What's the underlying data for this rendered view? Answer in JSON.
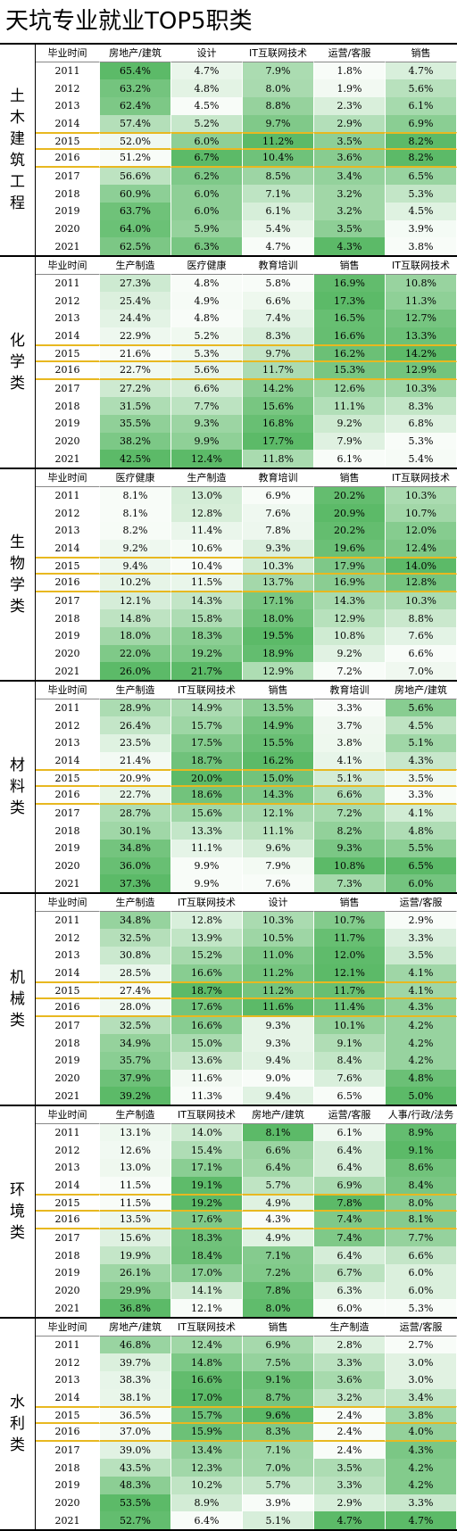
{
  "title": "天坑专业就业TOP5职类",
  "sections": [
    {
      "name": "土木建筑工程",
      "header": [
        "毕业时间",
        "房地产/建筑",
        "设计",
        "IT互联网技术",
        "运营/客服",
        "销售"
      ],
      "rows": [
        [
          "2011",
          "65.4%",
          "4.7%",
          "7.9%",
          "1.8%",
          "4.7%"
        ],
        [
          "2012",
          "63.2%",
          "4.8%",
          "8.0%",
          "1.9%",
          "5.6%"
        ],
        [
          "2013",
          "62.4%",
          "4.5%",
          "8.8%",
          "2.3%",
          "6.1%"
        ],
        [
          "2014",
          "57.4%",
          "5.2%",
          "9.7%",
          "2.9%",
          "6.9%"
        ],
        [
          "2015",
          "52.0%",
          "6.0%",
          "11.2%",
          "3.5%",
          "8.2%"
        ],
        [
          "2016",
          "51.2%",
          "6.7%",
          "10.4%",
          "3.6%",
          "8.2%"
        ],
        [
          "2017",
          "56.6%",
          "6.2%",
          "8.5%",
          "3.4%",
          "6.5%"
        ],
        [
          "2018",
          "60.9%",
          "6.0%",
          "7.1%",
          "3.2%",
          "5.3%"
        ],
        [
          "2019",
          "63.7%",
          "6.0%",
          "6.1%",
          "3.2%",
          "4.5%"
        ],
        [
          "2020",
          "64.0%",
          "5.9%",
          "5.4%",
          "3.5%",
          "3.9%"
        ],
        [
          "2021",
          "62.5%",
          "6.3%",
          "4.7%",
          "4.3%",
          "3.8%"
        ]
      ]
    },
    {
      "name": "化学类",
      "header": [
        "毕业时间",
        "生产制造",
        "医疗健康",
        "教育培训",
        "销售",
        "IT互联网技术"
      ],
      "rows": [
        [
          "2011",
          "27.3%",
          "4.8%",
          "5.8%",
          "16.9%",
          "10.8%"
        ],
        [
          "2012",
          "25.4%",
          "4.9%",
          "6.6%",
          "17.3%",
          "11.3%"
        ],
        [
          "2013",
          "24.4%",
          "4.8%",
          "7.4%",
          "16.5%",
          "12.7%"
        ],
        [
          "2014",
          "22.9%",
          "5.2%",
          "8.3%",
          "16.6%",
          "13.3%"
        ],
        [
          "2015",
          "21.6%",
          "5.3%",
          "9.7%",
          "16.2%",
          "14.2%"
        ],
        [
          "2016",
          "22.7%",
          "5.6%",
          "11.7%",
          "15.3%",
          "12.9%"
        ],
        [
          "2017",
          "27.2%",
          "6.6%",
          "14.2%",
          "12.6%",
          "10.3%"
        ],
        [
          "2018",
          "31.5%",
          "7.7%",
          "15.6%",
          "11.1%",
          "8.3%"
        ],
        [
          "2019",
          "35.5%",
          "9.3%",
          "16.8%",
          "9.2%",
          "6.8%"
        ],
        [
          "2020",
          "38.2%",
          "9.9%",
          "17.7%",
          "7.9%",
          "5.3%"
        ],
        [
          "2021",
          "42.5%",
          "12.4%",
          "11.8%",
          "6.1%",
          "5.4%"
        ]
      ]
    },
    {
      "name": "生物学类",
      "header": [
        "毕业时间",
        "医疗健康",
        "生产制造",
        "教育培训",
        "销售",
        "IT互联网技术"
      ],
      "rows": [
        [
          "2011",
          "8.1%",
          "13.0%",
          "6.9%",
          "20.2%",
          "10.3%"
        ],
        [
          "2012",
          "8.1%",
          "12.8%",
          "7.6%",
          "20.9%",
          "10.7%"
        ],
        [
          "2013",
          "8.2%",
          "11.4%",
          "7.8%",
          "20.2%",
          "12.0%"
        ],
        [
          "2014",
          "9.2%",
          "10.6%",
          "9.3%",
          "19.6%",
          "12.4%"
        ],
        [
          "2015",
          "9.4%",
          "10.4%",
          "10.3%",
          "17.9%",
          "14.0%"
        ],
        [
          "2016",
          "10.2%",
          "11.5%",
          "13.7%",
          "16.9%",
          "12.8%"
        ],
        [
          "2017",
          "12.1%",
          "14.3%",
          "17.1%",
          "14.3%",
          "10.3%"
        ],
        [
          "2018",
          "14.8%",
          "15.8%",
          "18.0%",
          "12.9%",
          "8.8%"
        ],
        [
          "2019",
          "18.0%",
          "18.3%",
          "19.5%",
          "10.8%",
          "7.6%"
        ],
        [
          "2020",
          "22.0%",
          "19.2%",
          "18.9%",
          "9.2%",
          "6.6%"
        ],
        [
          "2021",
          "26.0%",
          "21.7%",
          "12.9%",
          "7.2%",
          "7.0%"
        ]
      ]
    },
    {
      "name": "材料类",
      "header": [
        "毕业时间",
        "生产制造",
        "IT互联网技术",
        "销售",
        "教育培训",
        "房地产/建筑"
      ],
      "rows": [
        [
          "2011",
          "28.9%",
          "14.9%",
          "13.5%",
          "3.3%",
          "5.6%"
        ],
        [
          "2012",
          "26.4%",
          "15.7%",
          "14.9%",
          "3.7%",
          "4.5%"
        ],
        [
          "2013",
          "23.5%",
          "17.5%",
          "15.5%",
          "3.8%",
          "5.1%"
        ],
        [
          "2014",
          "21.4%",
          "18.7%",
          "16.2%",
          "4.1%",
          "4.3%"
        ],
        [
          "2015",
          "20.9%",
          "20.0%",
          "15.0%",
          "5.1%",
          "3.5%"
        ],
        [
          "2016",
          "22.7%",
          "18.6%",
          "14.3%",
          "6.6%",
          "3.3%"
        ],
        [
          "2017",
          "28.7%",
          "15.6%",
          "12.1%",
          "7.2%",
          "4.1%"
        ],
        [
          "2018",
          "30.1%",
          "13.3%",
          "11.1%",
          "8.2%",
          "4.8%"
        ],
        [
          "2019",
          "34.8%",
          "11.1%",
          "9.6%",
          "9.3%",
          "5.5%"
        ],
        [
          "2020",
          "36.0%",
          "9.9%",
          "7.9%",
          "10.8%",
          "6.5%"
        ],
        [
          "2021",
          "37.3%",
          "9.9%",
          "7.6%",
          "7.3%",
          "6.0%"
        ]
      ]
    },
    {
      "name": "机械类",
      "header": [
        "毕业时间",
        "生产制造",
        "IT互联网技术",
        "设计",
        "销售",
        "运营/客服"
      ],
      "rows": [
        [
          "2011",
          "34.8%",
          "12.8%",
          "10.3%",
          "10.7%",
          "2.9%"
        ],
        [
          "2012",
          "32.5%",
          "13.9%",
          "10.5%",
          "11.7%",
          "3.3%"
        ],
        [
          "2013",
          "30.8%",
          "15.2%",
          "11.0%",
          "12.0%",
          "3.5%"
        ],
        [
          "2014",
          "28.5%",
          "16.6%",
          "11.2%",
          "12.1%",
          "4.1%"
        ],
        [
          "2015",
          "27.4%",
          "18.7%",
          "11.2%",
          "11.7%",
          "4.1%"
        ],
        [
          "2016",
          "28.0%",
          "17.6%",
          "11.6%",
          "11.4%",
          "4.3%"
        ],
        [
          "2017",
          "32.5%",
          "16.6%",
          "9.3%",
          "10.1%",
          "4.2%"
        ],
        [
          "2018",
          "34.9%",
          "15.0%",
          "9.3%",
          "9.1%",
          "4.2%"
        ],
        [
          "2019",
          "35.7%",
          "13.6%",
          "9.4%",
          "8.4%",
          "4.2%"
        ],
        [
          "2020",
          "37.9%",
          "11.6%",
          "9.0%",
          "7.6%",
          "4.8%"
        ],
        [
          "2021",
          "39.2%",
          "11.3%",
          "9.4%",
          "6.5%",
          "5.0%"
        ]
      ]
    },
    {
      "name": "环境类",
      "header": [
        "毕业时间",
        "生产制造",
        "IT互联网技术",
        "房地产/建筑",
        "运营/客服",
        "人事/行政/法务"
      ],
      "rows": [
        [
          "2011",
          "13.1%",
          "14.0%",
          "8.1%",
          "6.1%",
          "8.9%"
        ],
        [
          "2012",
          "12.6%",
          "15.4%",
          "6.6%",
          "6.4%",
          "9.1%"
        ],
        [
          "2013",
          "13.0%",
          "17.1%",
          "6.4%",
          "6.4%",
          "8.6%"
        ],
        [
          "2014",
          "11.5%",
          "19.1%",
          "5.7%",
          "6.9%",
          "8.4%"
        ],
        [
          "2015",
          "11.5%",
          "19.2%",
          "4.9%",
          "7.8%",
          "8.0%"
        ],
        [
          "2016",
          "13.5%",
          "17.6%",
          "4.3%",
          "7.4%",
          "8.1%"
        ],
        [
          "2017",
          "15.6%",
          "18.3%",
          "4.9%",
          "7.4%",
          "7.7%"
        ],
        [
          "2018",
          "19.9%",
          "18.4%",
          "7.1%",
          "6.4%",
          "6.6%"
        ],
        [
          "2019",
          "26.1%",
          "17.0%",
          "7.2%",
          "6.7%",
          "6.0%"
        ],
        [
          "2020",
          "29.9%",
          "14.1%",
          "7.8%",
          "6.3%",
          "6.0%"
        ],
        [
          "2021",
          "36.8%",
          "12.1%",
          "8.0%",
          "6.0%",
          "5.3%"
        ]
      ]
    },
    {
      "name": "水利类",
      "header": [
        "毕业时间",
        "房地产/建筑",
        "IT互联网技术",
        "销售",
        "生产制造",
        "运营/客服"
      ],
      "rows": [
        [
          "2011",
          "46.8%",
          "12.4%",
          "6.9%",
          "2.8%",
          "2.7%"
        ],
        [
          "2012",
          "39.7%",
          "14.8%",
          "7.5%",
          "3.3%",
          "3.0%"
        ],
        [
          "2013",
          "38.3%",
          "16.6%",
          "9.1%",
          "3.6%",
          "3.0%"
        ],
        [
          "2014",
          "38.1%",
          "17.0%",
          "8.7%",
          "3.2%",
          "3.4%"
        ],
        [
          "2015",
          "36.5%",
          "15.7%",
          "9.6%",
          "2.4%",
          "3.8%"
        ],
        [
          "2016",
          "37.0%",
          "15.9%",
          "8.3%",
          "2.4%",
          "4.0%"
        ],
        [
          "2017",
          "39.0%",
          "13.4%",
          "7.1%",
          "2.4%",
          "4.3%"
        ],
        [
          "2018",
          "43.5%",
          "12.3%",
          "7.0%",
          "3.5%",
          "4.2%"
        ],
        [
          "2019",
          "48.3%",
          "10.2%",
          "5.7%",
          "3.3%",
          "4.2%"
        ],
        [
          "2020",
          "53.5%",
          "8.9%",
          "3.9%",
          "2.9%",
          "3.3%"
        ],
        [
          "2021",
          "52.7%",
          "6.4%",
          "5.1%",
          "4.7%",
          "4.7%"
        ]
      ]
    }
  ]
}
